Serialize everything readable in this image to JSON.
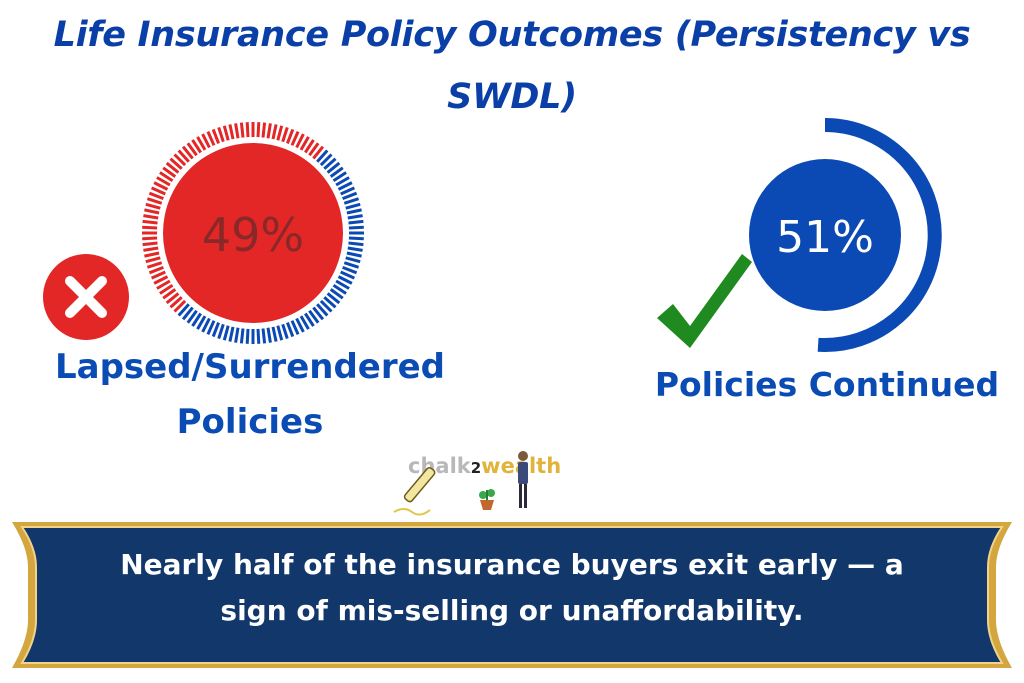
{
  "title": {
    "line1": "Life Insurance Policy Outcomes (Persistency vs",
    "line2": "SWDL)"
  },
  "chart_data": {
    "type": "pie",
    "series": [
      {
        "name": "Lapsed/Surrendered Policies",
        "value": 49,
        "label": "49%",
        "color": "#e32626"
      },
      {
        "name": "Policies Continued",
        "value": 51,
        "label": "51%",
        "color": "#0b49b5"
      }
    ]
  },
  "labels": {
    "left_line1": "Lapsed/Surrendered",
    "left_line2": "Policies",
    "right": "Policies Continued"
  },
  "logo": {
    "part1": "chalk",
    "part2": "2",
    "part3": "wealth"
  },
  "banner": {
    "line1": "Nearly half of the insurance buyers exit early — a",
    "line2": "sign of mis-selling or unaffordability."
  },
  "colors": {
    "title": "#0a3fa8",
    "red": "#e32626",
    "blue": "#0b49b5",
    "banner_bg": "#12376b",
    "banner_border": "#d4a640",
    "check": "#1f8a1f"
  }
}
